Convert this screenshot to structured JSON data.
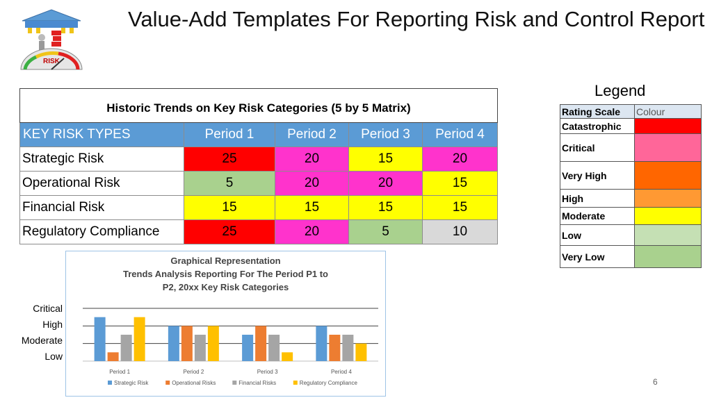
{
  "title": "Value-Add Templates For Reporting Risk and Control Report",
  "logo": {
    "text": "RISK"
  },
  "matrix": {
    "caption": "Historic Trends on Key Risk Categories  (5 by 5 Matrix)",
    "header": [
      "KEY RISK TYPES",
      "Period 1",
      "Period 2",
      "Period 3",
      "Period 4"
    ],
    "rows": [
      {
        "name": "Strategic Risk",
        "values": [
          "25",
          "20",
          "15",
          "20"
        ],
        "colors": [
          "#ff0000",
          "#ff33cc",
          "#ffff00",
          "#ff33cc"
        ]
      },
      {
        "name": "Operational Risk",
        "values": [
          "5",
          "20",
          "20",
          "15"
        ],
        "colors": [
          "#a9d18e",
          "#ff33cc",
          "#ff33cc",
          "#ffff00"
        ]
      },
      {
        "name": "Financial Risk",
        "values": [
          "15",
          "15",
          "15",
          "15"
        ],
        "colors": [
          "#ffff00",
          "#ffff00",
          "#ffff00",
          "#ffff00"
        ]
      },
      {
        "name": "Regulatory Compliance",
        "values": [
          "25",
          "20",
          "5",
          "10"
        ],
        "colors": [
          "#ff0000",
          "#ff33cc",
          "#a9d18e",
          "#d9d9d9"
        ]
      }
    ]
  },
  "legend": {
    "title": "Legend",
    "header": [
      "Rating Scale",
      "Colour"
    ],
    "items": [
      {
        "label": "Catastrophic",
        "color": "#ff0000"
      },
      {
        "label": "Critical",
        "color": "#ff6699"
      },
      {
        "label": "Very High",
        "color": "#ff6600"
      },
      {
        "label": "High",
        "color": "#ff9933"
      },
      {
        "label": "Moderate",
        "color": "#ffff00"
      },
      {
        "label": "Low",
        "color": "#c5e0b4"
      },
      {
        "label": "Very Low",
        "color": "#a9d18e"
      }
    ]
  },
  "y_labels": [
    "Critical",
    "High",
    "Moderate",
    "Low"
  ],
  "chart_data": {
    "type": "bar",
    "title": "Graphical   Representation\nTrends Analysis Reporting For The Period  P1  to\nP2, 20xx Key Risk Categories",
    "categories": [
      "Period 1",
      "Period 2",
      "Period 3",
      "Period 4"
    ],
    "series": [
      {
        "name": "Strategic Risk",
        "color": "#5b9bd5",
        "values": [
          25,
          20,
          15,
          20
        ]
      },
      {
        "name": "Operational Risks",
        "color": "#ed7d31",
        "values": [
          5,
          20,
          20,
          15
        ]
      },
      {
        "name": "Financial Risks",
        "color": "#a5a5a5",
        "values": [
          15,
          15,
          15,
          15
        ]
      },
      {
        "name": "Regulatory Compliance",
        "color": "#ffc000",
        "values": [
          25,
          20,
          5,
          10
        ]
      }
    ],
    "ylim": [
      0,
      30
    ],
    "grid": true,
    "legend": "bottom"
  },
  "slide_number": "6"
}
